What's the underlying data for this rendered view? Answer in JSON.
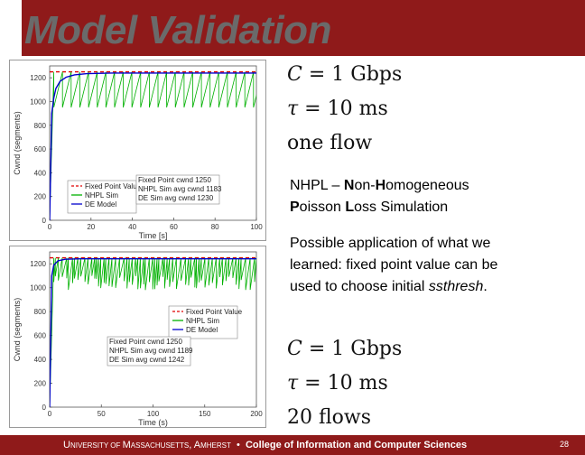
{
  "slide": {
    "title": "Model Validation",
    "footer_university_parts": [
      "U",
      "NIVERSITY OF ",
      "M",
      "ASSACHUSETTS",
      ", A",
      "MHERST"
    ],
    "footer_bullet": "•",
    "footer_college": "College of Information and Computer Sciences",
    "page_number": "28",
    "colors": {
      "band": "#8f1a1a",
      "title_text": "#6a6a6a"
    }
  },
  "math_top": {
    "line1": "C = 1 Gbps",
    "line2": "τ = 10 ms",
    "line3": "one flow"
  },
  "math_bottom": {
    "line1": "C = 1 Gbps",
    "line2": "τ = 10 ms",
    "line3": "20 flows"
  },
  "text": {
    "nhpl_parts": [
      "NHPL – ",
      "N",
      "on-",
      "H",
      "omogeneous ",
      "P",
      "oisson ",
      "L",
      "oss Simulation"
    ],
    "application_prefix": "Possible application of what we learned: fixed point value can be used to choose initial ",
    "application_term": "ssthresh",
    "application_suffix": "."
  },
  "chart_data": [
    {
      "type": "line",
      "xlabel": "Time [s]",
      "ylabel": "Cwnd (segments)",
      "xlim": [
        0,
        100
      ],
      "ylim": [
        0,
        1300
      ],
      "xticks": [
        "0",
        "20",
        "40",
        "60",
        "80",
        "100"
      ],
      "yticks": [
        "0",
        "200",
        "400",
        "600",
        "800",
        "1000",
        "1200"
      ],
      "legend_lines": [
        "Fixed Point Value",
        "NHPL Sim",
        "DE Model"
      ],
      "legend_stats": [
        "Fixed Point cwnd 1250",
        "NHPL Sim avg cwnd 1183",
        "DE Sim avg cwnd 1230"
      ],
      "series": [
        {
          "name": "Fixed Point Value",
          "color": "#e00000",
          "style": "dashed",
          "x": [
            0,
            100
          ],
          "y": [
            1250,
            1250
          ]
        },
        {
          "name": "NHPL Sim",
          "color": "#00b000",
          "pattern": "sawtooth",
          "peak": 1250,
          "trough": 950,
          "period": 4.2
        },
        {
          "name": "DE Model",
          "color": "#0000cc",
          "x": [
            0,
            1,
            2,
            3,
            5,
            8,
            12,
            18,
            30,
            100
          ],
          "y": [
            0,
            900,
            1030,
            1110,
            1170,
            1205,
            1225,
            1235,
            1240,
            1240
          ]
        }
      ]
    },
    {
      "type": "line",
      "xlabel": "Time (s)",
      "ylabel": "Cwnd (segments)",
      "xlim": [
        0,
        200
      ],
      "ylim": [
        0,
        1300
      ],
      "xticks": [
        "0",
        "50",
        "100",
        "150",
        "200"
      ],
      "yticks": [
        "0",
        "200",
        "400",
        "600",
        "800",
        "1000",
        "1200"
      ],
      "legend_lines": [
        "Fixed Point Value",
        "NHPL Sim",
        "DE Model"
      ],
      "legend_stats": [
        "Fixed Point cwnd 1250",
        "NHPL Sim avg cwnd 1189",
        "DE Sim avg cwnd 1242"
      ],
      "series": [
        {
          "name": "Fixed Point Value",
          "color": "#e00000",
          "style": "dashed",
          "x": [
            0,
            200
          ],
          "y": [
            1250,
            1250
          ]
        },
        {
          "name": "NHPL Sim",
          "color": "#00b000",
          "pattern": "noisy-sawtooth",
          "peak": 1250,
          "trough": 1100,
          "period": 3
        },
        {
          "name": "DE Model",
          "color": "#0000cc",
          "x": [
            0,
            2,
            4,
            8,
            15,
            30,
            200
          ],
          "y": [
            0,
            1100,
            1190,
            1225,
            1238,
            1242,
            1242
          ]
        }
      ]
    }
  ]
}
